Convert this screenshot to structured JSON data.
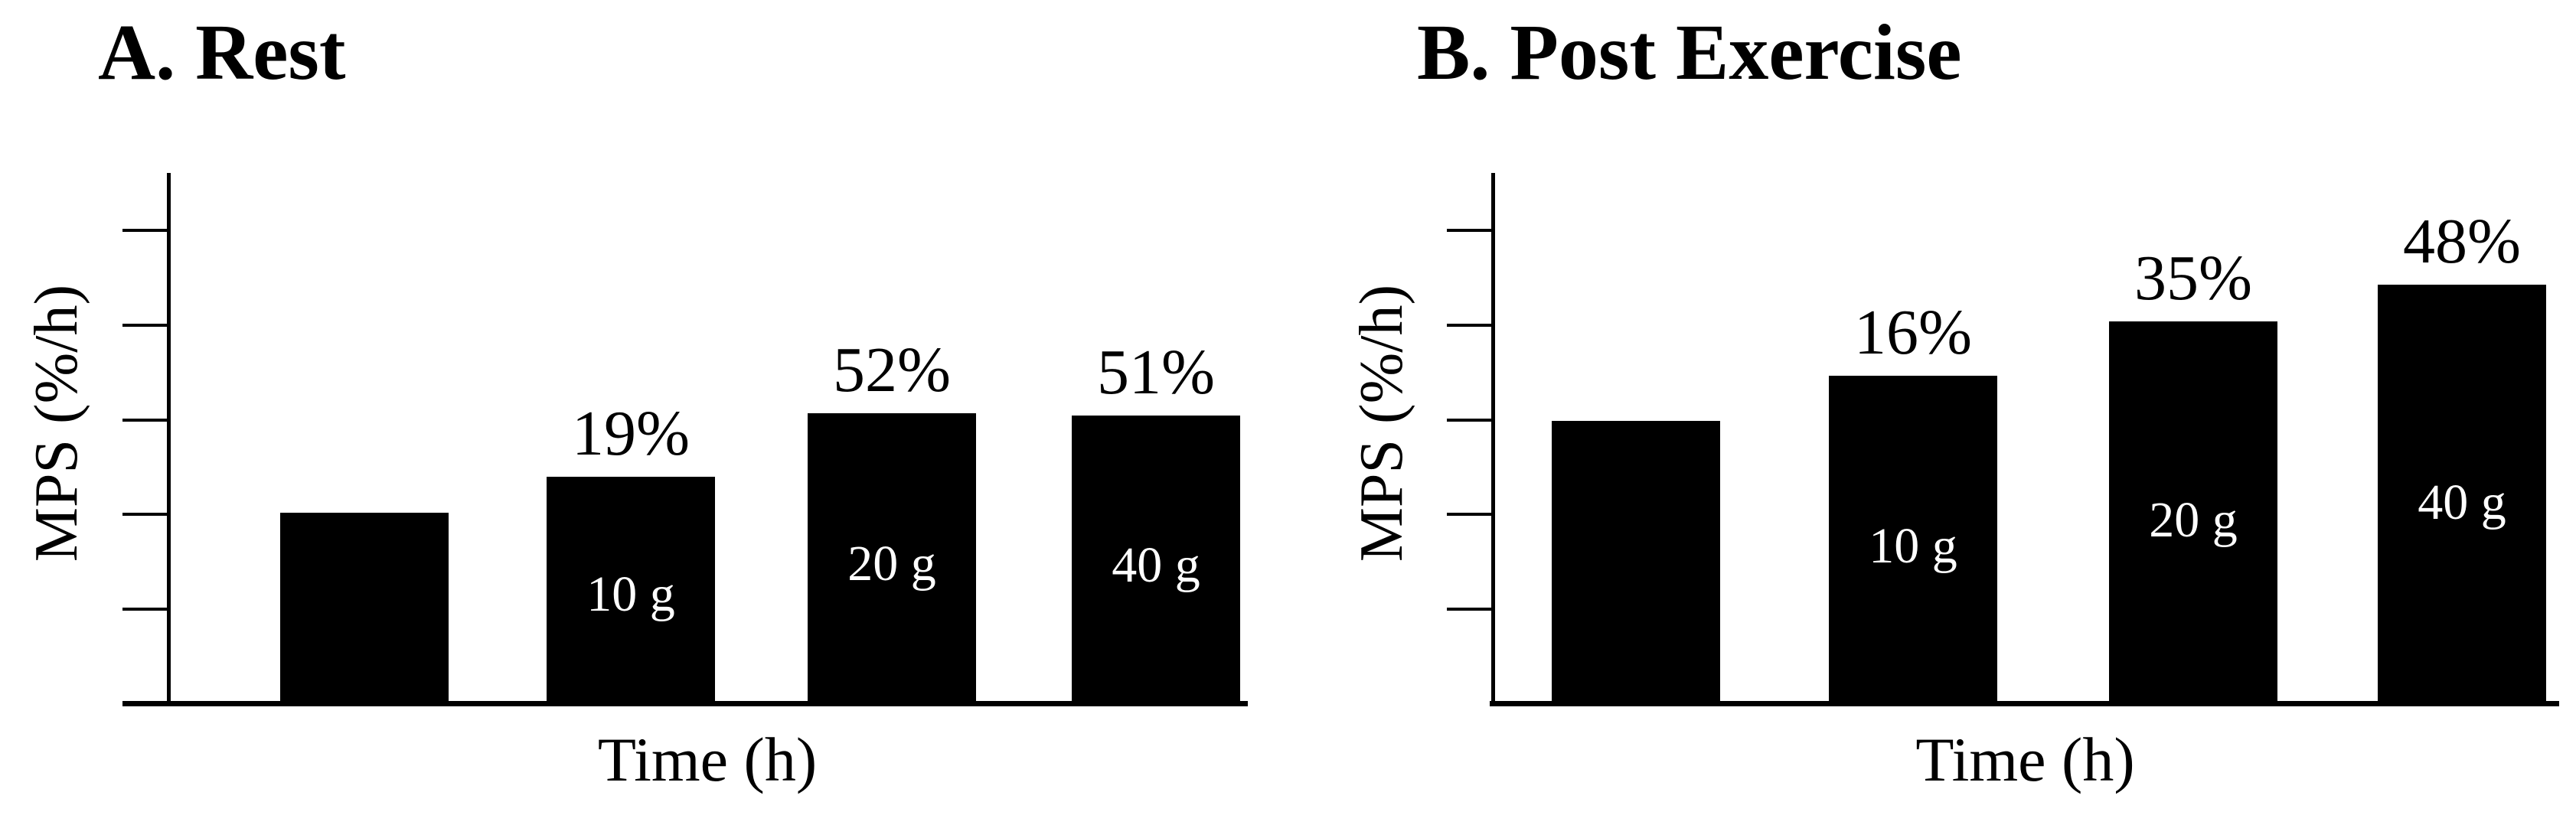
{
  "panels": [
    {
      "panel_label": "A. Rest",
      "y_axis_label": "MPS (%/h)",
      "x_axis_label": "Time (h)",
      "bars": [
        {
          "above_label": "",
          "inside_label": "",
          "height_pct": 36.0
        },
        {
          "above_label": "19%",
          "inside_label": "10 g",
          "height_pct": 42.8
        },
        {
          "above_label": "52%",
          "inside_label": "20 g",
          "height_pct": 54.8
        },
        {
          "above_label": "51%",
          "inside_label": "40 g",
          "height_pct": 54.3
        }
      ]
    },
    {
      "panel_label": "B. Post Exercise",
      "y_axis_label": "MPS (%/h)",
      "x_axis_label": "Time (h)",
      "bars": [
        {
          "above_label": "",
          "inside_label": "",
          "height_pct": 53.3
        },
        {
          "above_label": "16%",
          "inside_label": "10 g",
          "height_pct": 61.8
        },
        {
          "above_label": "35%",
          "inside_label": "20 g",
          "height_pct": 72.0
        },
        {
          "above_label": "48%",
          "inside_label": "40 g",
          "height_pct": 79.0
        }
      ]
    }
  ],
  "chart_data": [
    {
      "type": "bar",
      "title": "A. Rest",
      "xlabel": "Time (h)",
      "ylabel": "MPS (%/h)",
      "categories": [
        "control (no label)",
        "10 g",
        "20 g",
        "40 g"
      ],
      "values_pct_increase_vs_first_bar": [
        0,
        19,
        52,
        51
      ],
      "bar_height_fraction_of_y_axis": [
        0.36,
        0.428,
        0.548,
        0.543
      ],
      "bar_annotations_above": [
        "",
        "19%",
        "52%",
        "51%"
      ],
      "bar_annotations_inside": [
        "",
        "10 g",
        "20 g",
        "40 g"
      ],
      "y_axis": {
        "tick_count": 5,
        "tick_labels": "none (unlabeled ticks)"
      },
      "x_axis": {
        "tick_labels": "none"
      },
      "grid": "off",
      "legend": "none",
      "bar_color": "#000000"
    },
    {
      "type": "bar",
      "title": "B. Post Exercise",
      "xlabel": "Time (h)",
      "ylabel": "MPS (%/h)",
      "categories": [
        "control (no label)",
        "10 g",
        "20 g",
        "40 g"
      ],
      "values_pct_increase_vs_first_bar": [
        0,
        16,
        35,
        48
      ],
      "bar_height_fraction_of_y_axis": [
        0.533,
        0.618,
        0.72,
        0.79
      ],
      "bar_annotations_above": [
        "",
        "16%",
        "35%",
        "48%"
      ],
      "bar_annotations_inside": [
        "",
        "10 g",
        "20 g",
        "40 g"
      ],
      "y_axis": {
        "tick_count": 5,
        "tick_labels": "none (unlabeled ticks)"
      },
      "x_axis": {
        "tick_labels": "none"
      },
      "grid": "off",
      "legend": "none",
      "bar_color": "#000000"
    }
  ],
  "colors": {
    "background": "#ffffff",
    "bar_fill": "#000000",
    "axis": "#000000",
    "text": "#000000",
    "bar_inner_text": "#ffffff"
  }
}
